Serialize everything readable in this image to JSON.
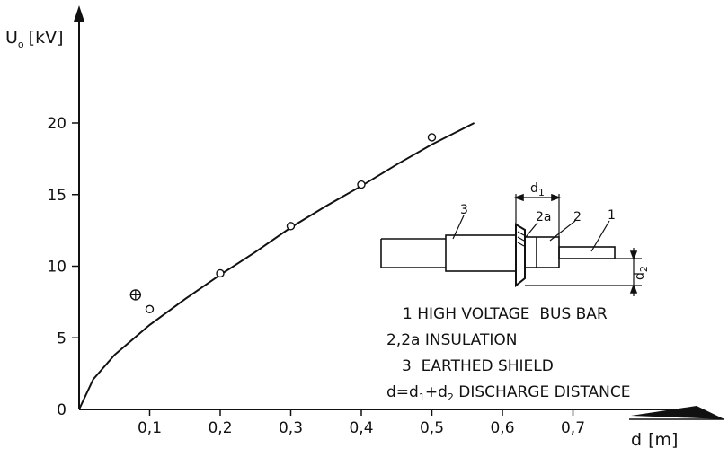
{
  "chart_data": {
    "type": "scatter",
    "x_axis": {
      "label_main": "d",
      "label_unit": "[m]",
      "min": 0,
      "max": 0.8,
      "ticks": [
        0.1,
        0.2,
        0.3,
        0.4,
        0.5,
        0.6,
        0.7
      ],
      "tick_labels": [
        "0,1",
        "0,2",
        "0,3",
        "0,4",
        "0,5",
        "0,6",
        "0,7"
      ]
    },
    "y_axis": {
      "label_main": "U",
      "label_sub": "o",
      "label_unit": "[kV]",
      "min": 0,
      "max": 25,
      "ticks": [
        0,
        5,
        10,
        15,
        20
      ],
      "tick_labels": [
        "0",
        "5",
        "10",
        "15",
        "20"
      ]
    },
    "grid": false,
    "points": [
      {
        "x": 0.08,
        "y": 8.0,
        "marker": "circle-plus"
      },
      {
        "x": 0.1,
        "y": 7.0,
        "marker": "circle"
      },
      {
        "x": 0.2,
        "y": 9.5,
        "marker": "circle"
      },
      {
        "x": 0.3,
        "y": 12.8,
        "marker": "circle"
      },
      {
        "x": 0.4,
        "y": 15.7,
        "marker": "circle"
      },
      {
        "x": 0.5,
        "y": 19.0,
        "marker": "circle"
      }
    ],
    "fit_curve": {
      "x": [
        0,
        0.02,
        0.05,
        0.1,
        0.15,
        0.2,
        0.25,
        0.3,
        0.35,
        0.4,
        0.45,
        0.5,
        0.56
      ],
      "y": [
        0,
        2.1,
        3.8,
        5.9,
        7.7,
        9.4,
        11.0,
        12.7,
        14.2,
        15.6,
        17.1,
        18.5,
        20.0
      ]
    },
    "inset": {
      "part_labels": [
        "3",
        "2a",
        "2",
        "1"
      ],
      "dim_d1": {
        "main": "d",
        "sub": "1"
      },
      "dim_d2": {
        "main": "d",
        "sub": "2"
      }
    },
    "legend": [
      {
        "id": "1",
        "text": "1 HIGH VOLTAGE  BUS BAR"
      },
      {
        "id": "2",
        "text": "2,2a INSULATION"
      },
      {
        "id": "3",
        "text": "3  EARTHED SHIELD"
      }
    ],
    "legend_formula": {
      "p1": "d=d",
      "s1": "1",
      "p2": "+d",
      "s2": "2",
      "p3": " DISCHARGE DISTANCE"
    }
  }
}
